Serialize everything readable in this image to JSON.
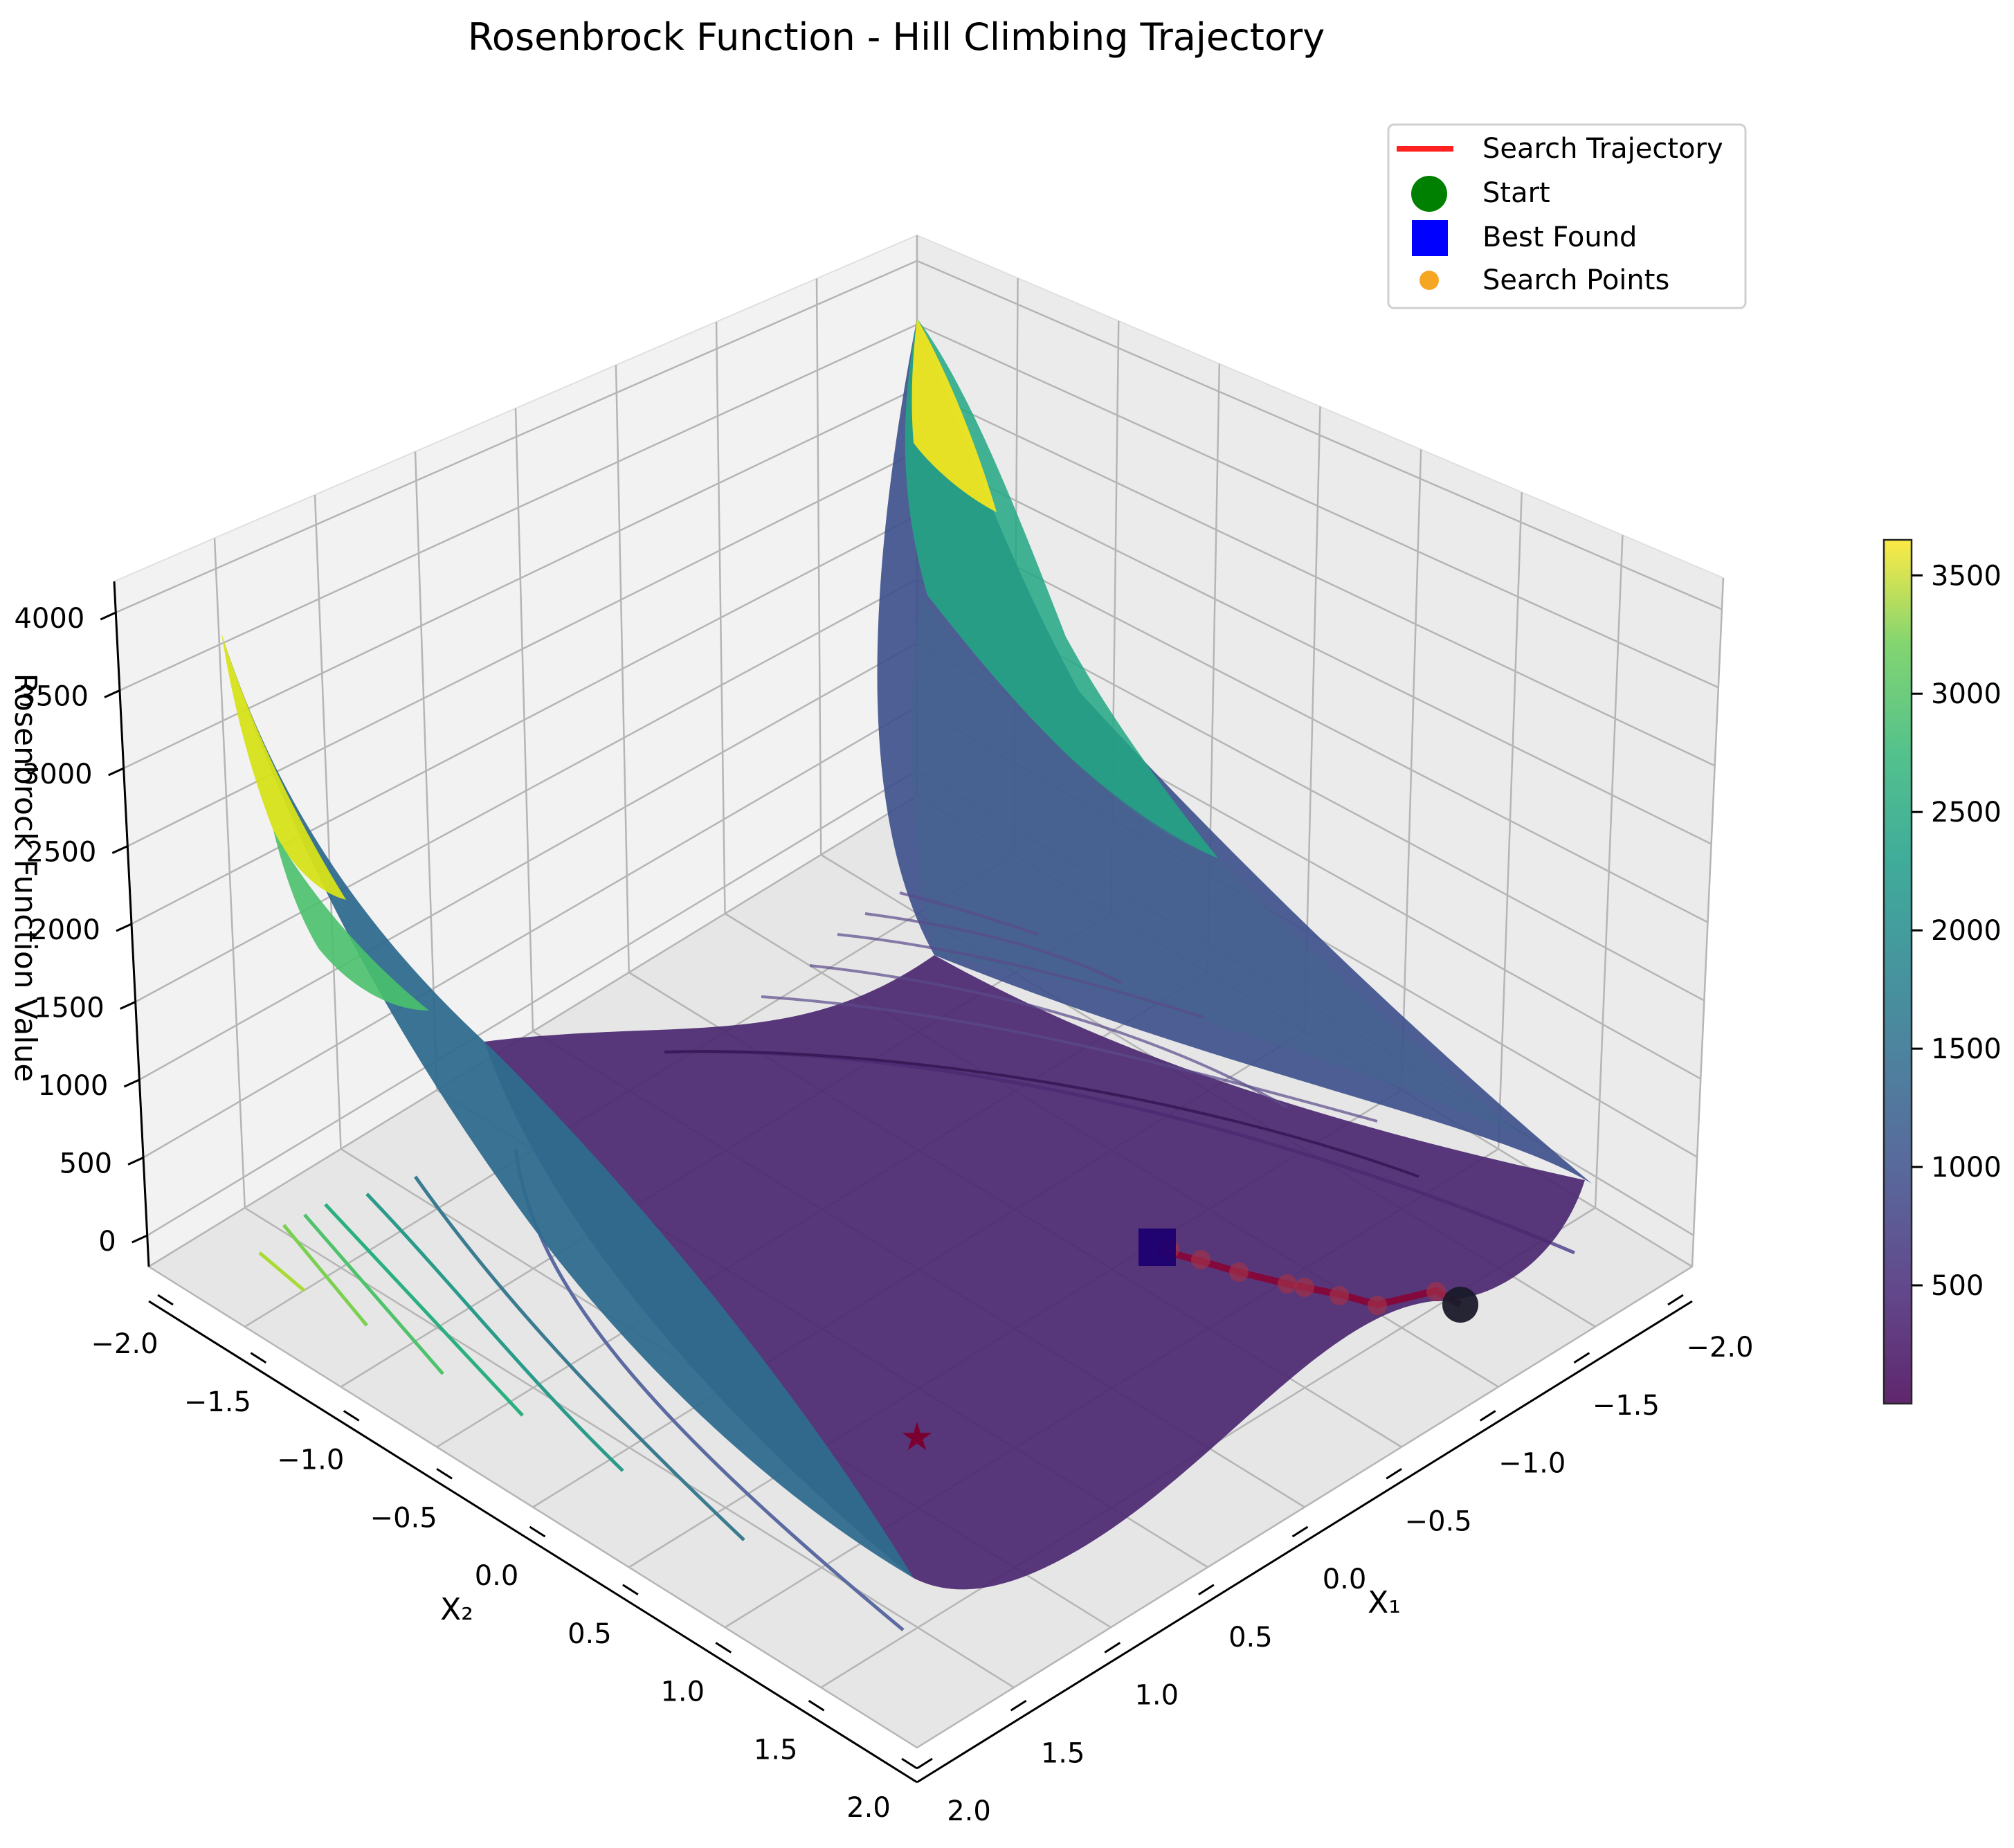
{
  "chart_data": {
    "type": "surface",
    "title": "Rosenbrock Function - Hill Climbing Trajectory",
    "xlabel": "X₁",
    "ylabel": "X₂",
    "zlabel": "Rosenbrock Function Value",
    "x_ticks": [
      "−2.0",
      "−1.5",
      "−1.0",
      "−0.5",
      "0.0",
      "0.5",
      "1.0",
      "1.5",
      "2.0"
    ],
    "y_ticks": [
      "−2.0",
      "−1.5",
      "−1.0",
      "−0.5",
      "0.0",
      "0.5",
      "1.0",
      "1.5",
      "2.0"
    ],
    "z_ticks": [
      "0",
      "500",
      "1000",
      "1500",
      "2000",
      "2500",
      "3000",
      "3500",
      "4000"
    ],
    "colorbar_ticks": [
      "500",
      "1000",
      "1500",
      "2000",
      "2500",
      "3000",
      "3500"
    ],
    "colorbar_range": [
      0,
      3650
    ],
    "colormap": "viridis",
    "legend": [
      {
        "label": "Search Trajectory",
        "marker": "line",
        "color": "#ff2020"
      },
      {
        "label": "Start",
        "marker": "circle",
        "color": "#008000"
      },
      {
        "label": "Best Found",
        "marker": "square",
        "color": "#0000ff"
      },
      {
        "label": "Search Points",
        "marker": "dot",
        "color": "#f5a623"
      }
    ],
    "legend_position": "top-right",
    "trajectory": {
      "start": [
        -1.9,
        -0.8
      ],
      "best": [
        -1.13,
        0.5
      ],
      "points": [
        [
          -1.76,
          -0.6
        ],
        [
          -1.62,
          -0.4
        ],
        [
          -1.5,
          -0.2
        ],
        [
          -1.42,
          -0.05
        ],
        [
          -1.36,
          0.05
        ],
        [
          -1.3,
          0.15
        ],
        [
          -1.22,
          0.3
        ],
        [
          -1.16,
          0.42
        ]
      ]
    },
    "global_minimum": [
      1.0,
      1.0
    ],
    "grid": true
  }
}
